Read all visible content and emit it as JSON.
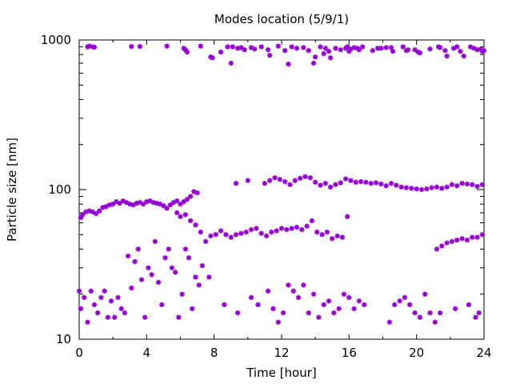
{
  "chart_data": {
    "type": "scatter",
    "title": "Modes location (5/9/1)",
    "xlabel": "Time [hour]",
    "ylabel": "Particle size [nm]",
    "xlim": [
      0,
      24
    ],
    "ylim": [
      10,
      1000
    ],
    "yscale": "log",
    "grid": false,
    "legend": "none",
    "marker": "asterisk",
    "colors": {
      "points": "#9400d3",
      "axes": "#000000"
    },
    "xticks": [
      "0",
      "4",
      "8",
      "12",
      "16",
      "20",
      "24"
    ],
    "xtick_values": [
      0,
      4,
      8,
      12,
      16,
      20,
      24
    ],
    "yticks": [
      "10",
      "100",
      "1000"
    ],
    "ytick_values": [
      10,
      100,
      1000
    ],
    "series": [
      {
        "points": [
          [
            0.5,
            900
          ],
          [
            0.6,
            910
          ],
          [
            0.8,
            900
          ],
          [
            0.9,
            895
          ],
          [
            3.1,
            905
          ],
          [
            3.6,
            905
          ],
          [
            5.2,
            910
          ],
          [
            6.2,
            880
          ],
          [
            6.3,
            860
          ],
          [
            6.4,
            830
          ],
          [
            7.2,
            910
          ],
          [
            7.8,
            770
          ],
          [
            7.9,
            760
          ],
          [
            8.4,
            830
          ],
          [
            8.8,
            900
          ],
          [
            9.0,
            700
          ],
          [
            9.1,
            900
          ],
          [
            9.4,
            880
          ],
          [
            9.6,
            890
          ],
          [
            9.8,
            860
          ],
          [
            10.2,
            890
          ],
          [
            10.4,
            870
          ],
          [
            10.8,
            900
          ],
          [
            11.2,
            860
          ],
          [
            11.3,
            790
          ],
          [
            11.8,
            910
          ],
          [
            12.2,
            850
          ],
          [
            12.4,
            690
          ],
          [
            12.6,
            900
          ],
          [
            12.9,
            880
          ],
          [
            13.3,
            890
          ],
          [
            13.6,
            850
          ],
          [
            13.9,
            700
          ],
          [
            14.0,
            770
          ],
          [
            14.3,
            900
          ],
          [
            14.5,
            810
          ],
          [
            14.6,
            880
          ],
          [
            14.8,
            840
          ],
          [
            14.9,
            760
          ],
          [
            15.2,
            880
          ],
          [
            15.5,
            860
          ],
          [
            15.8,
            880
          ],
          [
            15.9,
            900
          ],
          [
            16.0,
            840
          ],
          [
            16.1,
            870
          ],
          [
            16.3,
            890
          ],
          [
            16.5,
            880
          ],
          [
            16.6,
            860
          ],
          [
            16.8,
            900
          ],
          [
            17.4,
            850
          ],
          [
            17.7,
            880
          ],
          [
            17.9,
            880
          ],
          [
            18.2,
            890
          ],
          [
            18.5,
            890
          ],
          [
            18.6,
            840
          ],
          [
            19.2,
            900
          ],
          [
            19.4,
            850
          ],
          [
            19.5,
            860
          ],
          [
            19.9,
            860
          ],
          [
            20.1,
            830
          ],
          [
            20.2,
            820
          ],
          [
            20.8,
            870
          ],
          [
            21.3,
            900
          ],
          [
            21.4,
            890
          ],
          [
            21.7,
            850
          ],
          [
            21.8,
            780
          ],
          [
            22.2,
            880
          ],
          [
            22.4,
            900
          ],
          [
            22.6,
            840
          ],
          [
            22.8,
            780
          ],
          [
            23.2,
            900
          ],
          [
            23.4,
            880
          ],
          [
            23.6,
            860
          ],
          [
            23.8,
            870
          ],
          [
            23.9,
            840
          ],
          [
            24.0,
            850
          ],
          [
            0.1,
            65
          ],
          [
            0.2,
            68
          ],
          [
            0.4,
            71
          ],
          [
            0.6,
            72
          ],
          [
            0.8,
            71
          ],
          [
            1.0,
            69
          ],
          [
            1.2,
            72
          ],
          [
            1.4,
            76
          ],
          [
            1.6,
            77
          ],
          [
            1.8,
            79
          ],
          [
            2.0,
            80
          ],
          [
            2.2,
            83
          ],
          [
            2.4,
            81
          ],
          [
            2.6,
            84
          ],
          [
            2.8,
            82
          ],
          [
            3.0,
            80
          ],
          [
            3.2,
            79
          ],
          [
            3.4,
            81
          ],
          [
            3.6,
            82
          ],
          [
            3.8,
            80
          ],
          [
            4.0,
            83
          ],
          [
            4.2,
            84
          ],
          [
            4.4,
            82
          ],
          [
            4.6,
            81
          ],
          [
            4.8,
            80
          ],
          [
            5.0,
            78
          ],
          [
            5.2,
            75
          ],
          [
            5.4,
            79
          ],
          [
            5.6,
            82
          ],
          [
            5.8,
            84
          ],
          [
            6.0,
            80
          ],
          [
            6.2,
            83
          ],
          [
            6.4,
            86
          ],
          [
            6.6,
            90
          ],
          [
            6.8,
            97
          ],
          [
            7.0,
            95
          ],
          [
            9.3,
            110
          ],
          [
            10.0,
            115
          ],
          [
            11.0,
            110
          ],
          [
            11.3,
            115
          ],
          [
            11.6,
            120
          ],
          [
            11.9,
            117
          ],
          [
            12.2,
            113
          ],
          [
            12.5,
            108
          ],
          [
            12.8,
            115
          ],
          [
            13.1,
            119
          ],
          [
            13.4,
            122
          ],
          [
            13.7,
            120
          ],
          [
            14.0,
            112
          ],
          [
            14.3,
            107
          ],
          [
            14.6,
            110
          ],
          [
            14.9,
            104
          ],
          [
            15.2,
            108
          ],
          [
            15.5,
            111
          ],
          [
            15.8,
            118
          ],
          [
            16.1,
            115
          ],
          [
            16.4,
            112
          ],
          [
            16.7,
            113
          ],
          [
            17.0,
            112
          ],
          [
            17.3,
            110
          ],
          [
            17.6,
            111
          ],
          [
            17.9,
            109
          ],
          [
            18.2,
            106
          ],
          [
            18.5,
            110
          ],
          [
            18.8,
            107
          ],
          [
            19.1,
            104
          ],
          [
            19.4,
            103
          ],
          [
            19.7,
            102
          ],
          [
            20.0,
            101
          ],
          [
            20.3,
            100
          ],
          [
            20.6,
            101
          ],
          [
            20.9,
            103
          ],
          [
            21.2,
            104
          ],
          [
            21.5,
            102
          ],
          [
            21.8,
            104
          ],
          [
            22.1,
            108
          ],
          [
            22.4,
            106
          ],
          [
            22.7,
            110
          ],
          [
            23.0,
            109
          ],
          [
            23.3,
            108
          ],
          [
            23.6,
            105
          ],
          [
            23.9,
            108
          ],
          [
            5.8,
            70
          ],
          [
            6.0,
            66
          ],
          [
            6.3,
            68
          ],
          [
            6.6,
            62
          ],
          [
            6.9,
            58
          ],
          [
            7.2,
            52
          ],
          [
            7.5,
            45
          ],
          [
            7.8,
            49
          ],
          [
            8.1,
            50
          ],
          [
            8.4,
            53
          ],
          [
            8.7,
            50
          ],
          [
            9.0,
            48
          ],
          [
            9.3,
            50
          ],
          [
            9.6,
            51
          ],
          [
            9.9,
            52
          ],
          [
            10.2,
            54
          ],
          [
            10.5,
            55
          ],
          [
            10.8,
            51
          ],
          [
            11.1,
            49
          ],
          [
            11.4,
            52
          ],
          [
            11.7,
            53
          ],
          [
            12.0,
            55
          ],
          [
            12.3,
            54
          ],
          [
            12.6,
            55
          ],
          [
            12.9,
            56
          ],
          [
            13.2,
            54
          ],
          [
            13.5,
            57
          ],
          [
            13.8,
            62
          ],
          [
            14.1,
            52
          ],
          [
            14.4,
            50
          ],
          [
            14.7,
            52
          ],
          [
            15.0,
            47
          ],
          [
            15.3,
            49
          ],
          [
            15.6,
            48
          ],
          [
            15.9,
            66
          ],
          [
            21.2,
            40
          ],
          [
            21.5,
            42
          ],
          [
            21.8,
            44
          ],
          [
            22.1,
            45
          ],
          [
            22.4,
            46
          ],
          [
            22.7,
            47
          ],
          [
            23.0,
            46
          ],
          [
            23.3,
            48
          ],
          [
            23.6,
            48
          ],
          [
            23.9,
            50
          ],
          [
            0.0,
            21
          ],
          [
            0.1,
            16
          ],
          [
            0.3,
            19
          ],
          [
            0.5,
            13
          ],
          [
            0.7,
            21
          ],
          [
            0.9,
            17
          ],
          [
            1.1,
            15
          ],
          [
            1.3,
            19
          ],
          [
            1.5,
            21
          ],
          [
            1.7,
            14
          ],
          [
            1.9,
            18
          ],
          [
            2.1,
            14
          ],
          [
            2.3,
            19
          ],
          [
            2.5,
            16
          ],
          [
            2.7,
            15
          ],
          [
            2.9,
            36
          ],
          [
            3.1,
            22
          ],
          [
            3.3,
            33
          ],
          [
            3.5,
            40
          ],
          [
            3.7,
            25
          ],
          [
            3.9,
            14
          ],
          [
            4.1,
            30
          ],
          [
            4.3,
            27
          ],
          [
            4.5,
            45
          ],
          [
            4.7,
            24
          ],
          [
            4.9,
            17
          ],
          [
            5.1,
            35
          ],
          [
            5.3,
            40
          ],
          [
            5.5,
            30
          ],
          [
            5.7,
            28
          ],
          [
            5.9,
            14
          ],
          [
            6.1,
            20
          ],
          [
            6.3,
            40
          ],
          [
            6.5,
            35
          ],
          [
            6.7,
            16
          ],
          [
            6.9,
            26
          ],
          [
            7.1,
            23
          ],
          [
            7.3,
            31
          ],
          [
            7.7,
            26
          ],
          [
            8.6,
            17
          ],
          [
            9.4,
            15
          ],
          [
            10.2,
            19
          ],
          [
            10.6,
            17
          ],
          [
            11.2,
            21
          ],
          [
            11.5,
            16
          ],
          [
            11.8,
            13
          ],
          [
            12.1,
            15
          ],
          [
            12.4,
            23
          ],
          [
            12.7,
            21
          ],
          [
            13.0,
            19
          ],
          [
            13.3,
            23
          ],
          [
            13.6,
            15
          ],
          [
            13.9,
            20
          ],
          [
            14.2,
            14
          ],
          [
            14.5,
            17
          ],
          [
            14.8,
            18
          ],
          [
            15.1,
            15
          ],
          [
            15.4,
            16
          ],
          [
            15.7,
            20
          ],
          [
            16.0,
            19
          ],
          [
            16.3,
            16
          ],
          [
            16.6,
            18
          ],
          [
            16.9,
            17
          ],
          [
            18.4,
            13
          ],
          [
            18.7,
            17
          ],
          [
            19.0,
            18
          ],
          [
            19.3,
            19
          ],
          [
            19.6,
            17
          ],
          [
            19.9,
            15
          ],
          [
            20.2,
            14
          ],
          [
            20.5,
            20
          ],
          [
            20.8,
            15
          ],
          [
            21.1,
            13
          ],
          [
            21.4,
            15
          ],
          [
            22.3,
            16
          ],
          [
            23.1,
            17
          ],
          [
            23.5,
            14
          ],
          [
            23.7,
            15
          ]
        ]
      }
    ]
  }
}
